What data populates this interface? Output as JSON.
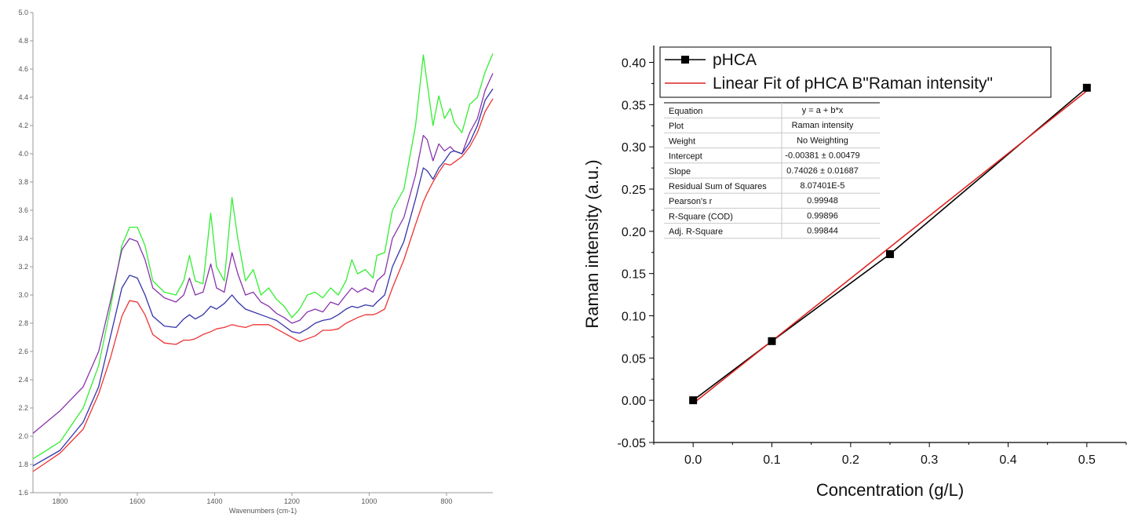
{
  "chart_data": [
    {
      "type": "line",
      "title": "",
      "xlabel": "Wavenumbers (cm-1)",
      "ylabel": "",
      "xlim": [
        1870,
        680
      ],
      "ylim": [
        1.6,
        5.0
      ],
      "x_reversed": true,
      "grid": false,
      "x_ticks": [
        "1800",
        "1600",
        "1400",
        "1200",
        "1000",
        "800"
      ],
      "y_ticks": [
        "1.6",
        "1.8",
        "2.0",
        "2.2",
        "2.4",
        "2.6",
        "2.8",
        "3.0",
        "3.2",
        "3.4",
        "3.6",
        "3.8",
        "4.0",
        "4.2",
        "4.4",
        "4.6",
        "4.8",
        "5.0"
      ],
      "series": [
        {
          "color": "#33ee33",
          "points": [
            [
              1870,
              1.84
            ],
            [
              1800,
              1.96
            ],
            [
              1740,
              2.2
            ],
            [
              1700,
              2.5
            ],
            [
              1670,
              2.9
            ],
            [
              1640,
              3.35
            ],
            [
              1620,
              3.48
            ],
            [
              1600,
              3.48
            ],
            [
              1580,
              3.35
            ],
            [
              1560,
              3.1
            ],
            [
              1530,
              3.02
            ],
            [
              1500,
              3.0
            ],
            [
              1480,
              3.1
            ],
            [
              1465,
              3.28
            ],
            [
              1450,
              3.1
            ],
            [
              1430,
              3.08
            ],
            [
              1410,
              3.58
            ],
            [
              1395,
              3.2
            ],
            [
              1375,
              3.1
            ],
            [
              1355,
              3.69
            ],
            [
              1340,
              3.4
            ],
            [
              1320,
              3.1
            ],
            [
              1300,
              3.18
            ],
            [
              1280,
              3.0
            ],
            [
              1260,
              3.05
            ],
            [
              1240,
              2.97
            ],
            [
              1220,
              2.92
            ],
            [
              1200,
              2.84
            ],
            [
              1180,
              2.9
            ],
            [
              1160,
              3.0
            ],
            [
              1140,
              3.02
            ],
            [
              1120,
              2.98
            ],
            [
              1100,
              3.05
            ],
            [
              1080,
              3.0
            ],
            [
              1060,
              3.1
            ],
            [
              1045,
              3.25
            ],
            [
              1030,
              3.15
            ],
            [
              1010,
              3.18
            ],
            [
              990,
              3.12
            ],
            [
              980,
              3.28
            ],
            [
              960,
              3.3
            ],
            [
              940,
              3.6
            ],
            [
              910,
              3.75
            ],
            [
              880,
              4.2
            ],
            [
              860,
              4.7
            ],
            [
              850,
              4.5
            ],
            [
              835,
              4.2
            ],
            [
              820,
              4.41
            ],
            [
              805,
              4.25
            ],
            [
              790,
              4.32
            ],
            [
              780,
              4.22
            ],
            [
              760,
              4.15
            ],
            [
              740,
              4.35
            ],
            [
              720,
              4.4
            ],
            [
              700,
              4.58
            ],
            [
              680,
              4.71
            ]
          ]
        },
        {
          "color": "#8833aa",
          "points": [
            [
              1870,
              2.02
            ],
            [
              1800,
              2.18
            ],
            [
              1740,
              2.35
            ],
            [
              1700,
              2.6
            ],
            [
              1670,
              2.95
            ],
            [
              1640,
              3.32
            ],
            [
              1620,
              3.4
            ],
            [
              1600,
              3.38
            ],
            [
              1580,
              3.25
            ],
            [
              1560,
              3.05
            ],
            [
              1530,
              2.98
            ],
            [
              1500,
              2.95
            ],
            [
              1480,
              3.0
            ],
            [
              1465,
              3.12
            ],
            [
              1450,
              3.0
            ],
            [
              1430,
              3.02
            ],
            [
              1410,
              3.22
            ],
            [
              1395,
              3.05
            ],
            [
              1375,
              3.02
            ],
            [
              1355,
              3.3
            ],
            [
              1340,
              3.15
            ],
            [
              1320,
              3.0
            ],
            [
              1300,
              3.02
            ],
            [
              1280,
              2.95
            ],
            [
              1260,
              2.92
            ],
            [
              1240,
              2.87
            ],
            [
              1220,
              2.84
            ],
            [
              1200,
              2.8
            ],
            [
              1180,
              2.82
            ],
            [
              1160,
              2.88
            ],
            [
              1140,
              2.9
            ],
            [
              1120,
              2.88
            ],
            [
              1100,
              2.95
            ],
            [
              1080,
              2.93
            ],
            [
              1060,
              3.0
            ],
            [
              1045,
              3.05
            ],
            [
              1030,
              3.02
            ],
            [
              1010,
              3.05
            ],
            [
              990,
              3.02
            ],
            [
              980,
              3.1
            ],
            [
              960,
              3.15
            ],
            [
              940,
              3.4
            ],
            [
              910,
              3.55
            ],
            [
              880,
              3.85
            ],
            [
              860,
              4.13
            ],
            [
              850,
              4.1
            ],
            [
              835,
              3.95
            ],
            [
              820,
              4.07
            ],
            [
              805,
              4.02
            ],
            [
              790,
              4.05
            ],
            [
              780,
              4.02
            ],
            [
              760,
              4.0
            ],
            [
              740,
              4.15
            ],
            [
              720,
              4.25
            ],
            [
              700,
              4.45
            ],
            [
              680,
              4.57
            ]
          ]
        },
        {
          "color": "#3333aa",
          "points": [
            [
              1870,
              1.79
            ],
            [
              1800,
              1.9
            ],
            [
              1740,
              2.1
            ],
            [
              1700,
              2.35
            ],
            [
              1670,
              2.7
            ],
            [
              1640,
              3.05
            ],
            [
              1620,
              3.14
            ],
            [
              1600,
              3.12
            ],
            [
              1580,
              3.0
            ],
            [
              1560,
              2.85
            ],
            [
              1530,
              2.78
            ],
            [
              1500,
              2.77
            ],
            [
              1480,
              2.83
            ],
            [
              1465,
              2.86
            ],
            [
              1450,
              2.83
            ],
            [
              1430,
              2.86
            ],
            [
              1410,
              2.92
            ],
            [
              1395,
              2.9
            ],
            [
              1375,
              2.94
            ],
            [
              1355,
              3.0
            ],
            [
              1340,
              2.95
            ],
            [
              1320,
              2.9
            ],
            [
              1300,
              2.88
            ],
            [
              1280,
              2.86
            ],
            [
              1260,
              2.84
            ],
            [
              1240,
              2.82
            ],
            [
              1220,
              2.78
            ],
            [
              1200,
              2.74
            ],
            [
              1180,
              2.73
            ],
            [
              1160,
              2.76
            ],
            [
              1140,
              2.8
            ],
            [
              1120,
              2.82
            ],
            [
              1100,
              2.83
            ],
            [
              1080,
              2.86
            ],
            [
              1060,
              2.9
            ],
            [
              1045,
              2.92
            ],
            [
              1030,
              2.91
            ],
            [
              1010,
              2.93
            ],
            [
              990,
              2.92
            ],
            [
              980,
              2.95
            ],
            [
              960,
              3.0
            ],
            [
              940,
              3.2
            ],
            [
              910,
              3.38
            ],
            [
              880,
              3.68
            ],
            [
              860,
              3.9
            ],
            [
              850,
              3.88
            ],
            [
              835,
              3.82
            ],
            [
              820,
              3.9
            ],
            [
              805,
              3.95
            ],
            [
              790,
              4.01
            ],
            [
              780,
              4.02
            ],
            [
              760,
              4.0
            ],
            [
              740,
              4.08
            ],
            [
              720,
              4.2
            ],
            [
              700,
              4.38
            ],
            [
              680,
              4.46
            ]
          ]
        },
        {
          "color": "#ee3333",
          "points": [
            [
              1870,
              1.75
            ],
            [
              1800,
              1.88
            ],
            [
              1740,
              2.05
            ],
            [
              1700,
              2.3
            ],
            [
              1670,
              2.55
            ],
            [
              1640,
              2.85
            ],
            [
              1620,
              2.96
            ],
            [
              1600,
              2.95
            ],
            [
              1580,
              2.86
            ],
            [
              1560,
              2.72
            ],
            [
              1530,
              2.66
            ],
            [
              1500,
              2.65
            ],
            [
              1480,
              2.68
            ],
            [
              1465,
              2.68
            ],
            [
              1450,
              2.69
            ],
            [
              1430,
              2.72
            ],
            [
              1410,
              2.74
            ],
            [
              1395,
              2.76
            ],
            [
              1375,
              2.77
            ],
            [
              1355,
              2.79
            ],
            [
              1340,
              2.78
            ],
            [
              1320,
              2.77
            ],
            [
              1300,
              2.79
            ],
            [
              1280,
              2.79
            ],
            [
              1260,
              2.79
            ],
            [
              1240,
              2.76
            ],
            [
              1220,
              2.73
            ],
            [
              1200,
              2.7
            ],
            [
              1180,
              2.67
            ],
            [
              1160,
              2.69
            ],
            [
              1140,
              2.71
            ],
            [
              1120,
              2.75
            ],
            [
              1100,
              2.75
            ],
            [
              1080,
              2.76
            ],
            [
              1060,
              2.8
            ],
            [
              1045,
              2.82
            ],
            [
              1030,
              2.84
            ],
            [
              1010,
              2.86
            ],
            [
              990,
              2.86
            ],
            [
              980,
              2.87
            ],
            [
              960,
              2.9
            ],
            [
              940,
              3.05
            ],
            [
              910,
              3.25
            ],
            [
              880,
              3.5
            ],
            [
              860,
              3.66
            ],
            [
              850,
              3.72
            ],
            [
              835,
              3.8
            ],
            [
              820,
              3.87
            ],
            [
              805,
              3.93
            ],
            [
              790,
              3.92
            ],
            [
              780,
              3.94
            ],
            [
              760,
              3.98
            ],
            [
              740,
              4.05
            ],
            [
              720,
              4.15
            ],
            [
              700,
              4.3
            ],
            [
              680,
              4.39
            ]
          ]
        }
      ]
    },
    {
      "type": "line",
      "title": "",
      "xlabel": "Concentration (g/L)",
      "ylabel": "Raman intensity (a.u.)",
      "xlim": [
        -0.05,
        0.55
      ],
      "ylim": [
        -0.05,
        0.42
      ],
      "grid": false,
      "x_ticks": [
        "0.0",
        "0.1",
        "0.2",
        "0.3",
        "0.4",
        "0.5"
      ],
      "y_ticks": [
        "-0.05",
        "0.00",
        "0.05",
        "0.10",
        "0.15",
        "0.20",
        "0.25",
        "0.30",
        "0.35",
        "0.40"
      ],
      "legend_position": "top",
      "series": [
        {
          "name": "pHCA",
          "color": "#000000",
          "marker": "square",
          "x": [
            0.0,
            0.1,
            0.25,
            0.5
          ],
          "y": [
            0.0,
            0.07,
            0.173,
            0.37
          ]
        },
        {
          "name": "Linear Fit of pHCA B\"Raman intensity\"",
          "color": "#dd2222",
          "intercept": -0.00381,
          "slope": 0.74026,
          "x_range": [
            0.0,
            0.5
          ]
        }
      ],
      "stats_table": [
        [
          "Equation",
          "y = a + b*x"
        ],
        [
          "Plot",
          "Raman intensity"
        ],
        [
          "Weight",
          "No Weighting"
        ],
        [
          "Intercept",
          "-0.00381 ± 0.00479"
        ],
        [
          "Slope",
          "0.74026 ± 0.01687"
        ],
        [
          "Residual Sum of Squares",
          "8.07401E-5"
        ],
        [
          "Pearson's r",
          "0.99948"
        ],
        [
          "R-Square (COD)",
          "0.99896"
        ],
        [
          "Adj. R-Square",
          "0.99844"
        ]
      ]
    }
  ]
}
